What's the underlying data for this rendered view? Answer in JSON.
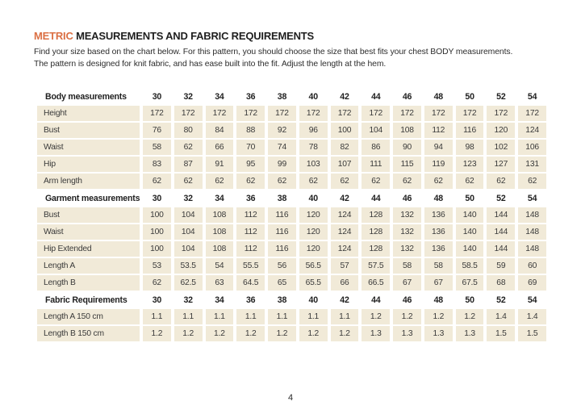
{
  "page": {
    "title_highlight": "METRIC",
    "title_rest": "MEASUREMENTS AND FABRIC REQUIREMENTS",
    "intro_line1": "Find your size based on the chart below. For this pattern, you should choose the size that best fits your chest BODY measurements.",
    "intro_line2": "The pattern is designed for knit fabric, and has ease built into the fit.  Adjust the length at the hem.",
    "page_number": "4"
  },
  "colors": {
    "accent_orange": "#DB7044",
    "row_beige": "#F1EAD8",
    "text_dark": "#1F1F1F"
  },
  "table": {
    "sizes": [
      "30",
      "32",
      "34",
      "36",
      "38",
      "40",
      "42",
      "44",
      "46",
      "48",
      "50",
      "52",
      "54"
    ],
    "sections": [
      {
        "header": "Body measurements",
        "rows": [
          {
            "label": "Height",
            "values": [
              "172",
              "172",
              "172",
              "172",
              "172",
              "172",
              "172",
              "172",
              "172",
              "172",
              "172",
              "172",
              "172"
            ]
          },
          {
            "label": "Bust",
            "values": [
              "76",
              "80",
              "84",
              "88",
              "92",
              "96",
              "100",
              "104",
              "108",
              "112",
              "116",
              "120",
              "124"
            ]
          },
          {
            "label": "Waist",
            "values": [
              "58",
              "62",
              "66",
              "70",
              "74",
              "78",
              "82",
              "86",
              "90",
              "94",
              "98",
              "102",
              "106"
            ]
          },
          {
            "label": "Hip",
            "values": [
              "83",
              "87",
              "91",
              "95",
              "99",
              "103",
              "107",
              "111",
              "115",
              "119",
              "123",
              "127",
              "131"
            ]
          },
          {
            "label": "Arm length",
            "values": [
              "62",
              "62",
              "62",
              "62",
              "62",
              "62",
              "62",
              "62",
              "62",
              "62",
              "62",
              "62",
              "62"
            ]
          }
        ]
      },
      {
        "header": "Garment measurements",
        "rows": [
          {
            "label": "Bust",
            "values": [
              "100",
              "104",
              "108",
              "112",
              "116",
              "120",
              "124",
              "128",
              "132",
              "136",
              "140",
              "144",
              "148"
            ]
          },
          {
            "label": "Waist",
            "values": [
              "100",
              "104",
              "108",
              "112",
              "116",
              "120",
              "124",
              "128",
              "132",
              "136",
              "140",
              "144",
              "148"
            ]
          },
          {
            "label": "Hip Extended",
            "values": [
              "100",
              "104",
              "108",
              "112",
              "116",
              "120",
              "124",
              "128",
              "132",
              "136",
              "140",
              "144",
              "148"
            ]
          },
          {
            "label": "Length A",
            "values": [
              "53",
              "53.5",
              "54",
              "55.5",
              "56",
              "56.5",
              "57",
              "57.5",
              "58",
              "58",
              "58.5",
              "59",
              "60"
            ]
          },
          {
            "label": "Length B",
            "values": [
              "62",
              "62.5",
              "63",
              "64.5",
              "65",
              "65.5",
              "66",
              "66.5",
              "67",
              "67",
              "67.5",
              "68",
              "69"
            ]
          }
        ]
      },
      {
        "header": "Fabric Requirements",
        "rows": [
          {
            "label": "Length A 150 cm",
            "values": [
              "1.1",
              "1.1",
              "1.1",
              "1.1",
              "1.1",
              "1.1",
              "1.1",
              "1.2",
              "1.2",
              "1.2",
              "1.2",
              "1.4",
              "1.4"
            ]
          },
          {
            "label": "Length B 150 cm",
            "values": [
              "1.2",
              "1.2",
              "1.2",
              "1.2",
              "1.2",
              "1.2",
              "1.2",
              "1.3",
              "1.3",
              "1.3",
              "1.3",
              "1.5",
              "1.5"
            ]
          }
        ]
      }
    ]
  }
}
